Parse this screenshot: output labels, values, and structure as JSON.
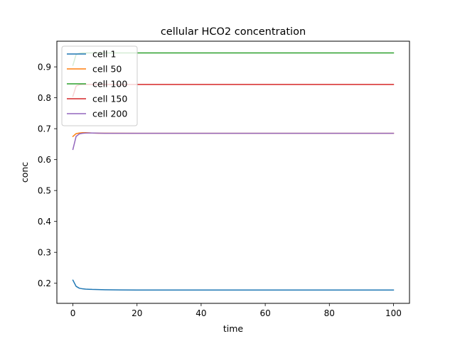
{
  "chart_data": {
    "type": "line",
    "title": "cellular HCO2 concentration",
    "xlabel": "time",
    "ylabel": "conc",
    "xlim": [
      -5,
      105
    ],
    "ylim": [
      0.135,
      0.983
    ],
    "xticks": [
      0,
      20,
      40,
      60,
      80,
      100
    ],
    "yticks": [
      0.2,
      0.3,
      0.4,
      0.5,
      0.6,
      0.7,
      0.8,
      0.9
    ],
    "grid": false,
    "legend": "top-left",
    "series": [
      {
        "name": "cell 1",
        "color": "#1f77b4",
        "x": [
          0,
          1,
          2,
          3,
          4,
          6,
          8,
          10,
          15,
          20,
          40,
          60,
          80,
          100
        ],
        "y": [
          0.21,
          0.19,
          0.184,
          0.182,
          0.181,
          0.18,
          0.1795,
          0.179,
          0.1785,
          0.178,
          0.178,
          0.178,
          0.178,
          0.178
        ]
      },
      {
        "name": "cell 50",
        "color": "#ff7f0e",
        "x": [
          0,
          1,
          2,
          3,
          4,
          6,
          8,
          10,
          20,
          40,
          60,
          80,
          100
        ],
        "y": [
          0.675,
          0.684,
          0.686,
          0.687,
          0.687,
          0.686,
          0.6855,
          0.6855,
          0.685,
          0.685,
          0.685,
          0.685,
          0.685
        ]
      },
      {
        "name": "cell 100",
        "color": "#2ca02c",
        "x": [
          0,
          1,
          2,
          3,
          5,
          10,
          20,
          40,
          60,
          80,
          100
        ],
        "y": [
          0.905,
          0.94,
          0.944,
          0.945,
          0.945,
          0.945,
          0.945,
          0.945,
          0.945,
          0.945,
          0.945
        ]
      },
      {
        "name": "cell 150",
        "color": "#d62728",
        "x": [
          0,
          1,
          2,
          3,
          5,
          10,
          20,
          40,
          60,
          80,
          100
        ],
        "y": [
          0.805,
          0.838,
          0.842,
          0.843,
          0.843,
          0.843,
          0.843,
          0.843,
          0.843,
          0.843,
          0.843
        ]
      },
      {
        "name": "cell 200",
        "color": "#9467bd",
        "x": [
          0,
          1,
          2,
          3,
          4,
          6,
          10,
          20,
          40,
          60,
          80,
          100
        ],
        "y": [
          0.633,
          0.675,
          0.683,
          0.685,
          0.686,
          0.686,
          0.685,
          0.685,
          0.685,
          0.685,
          0.685,
          0.685
        ]
      }
    ]
  }
}
